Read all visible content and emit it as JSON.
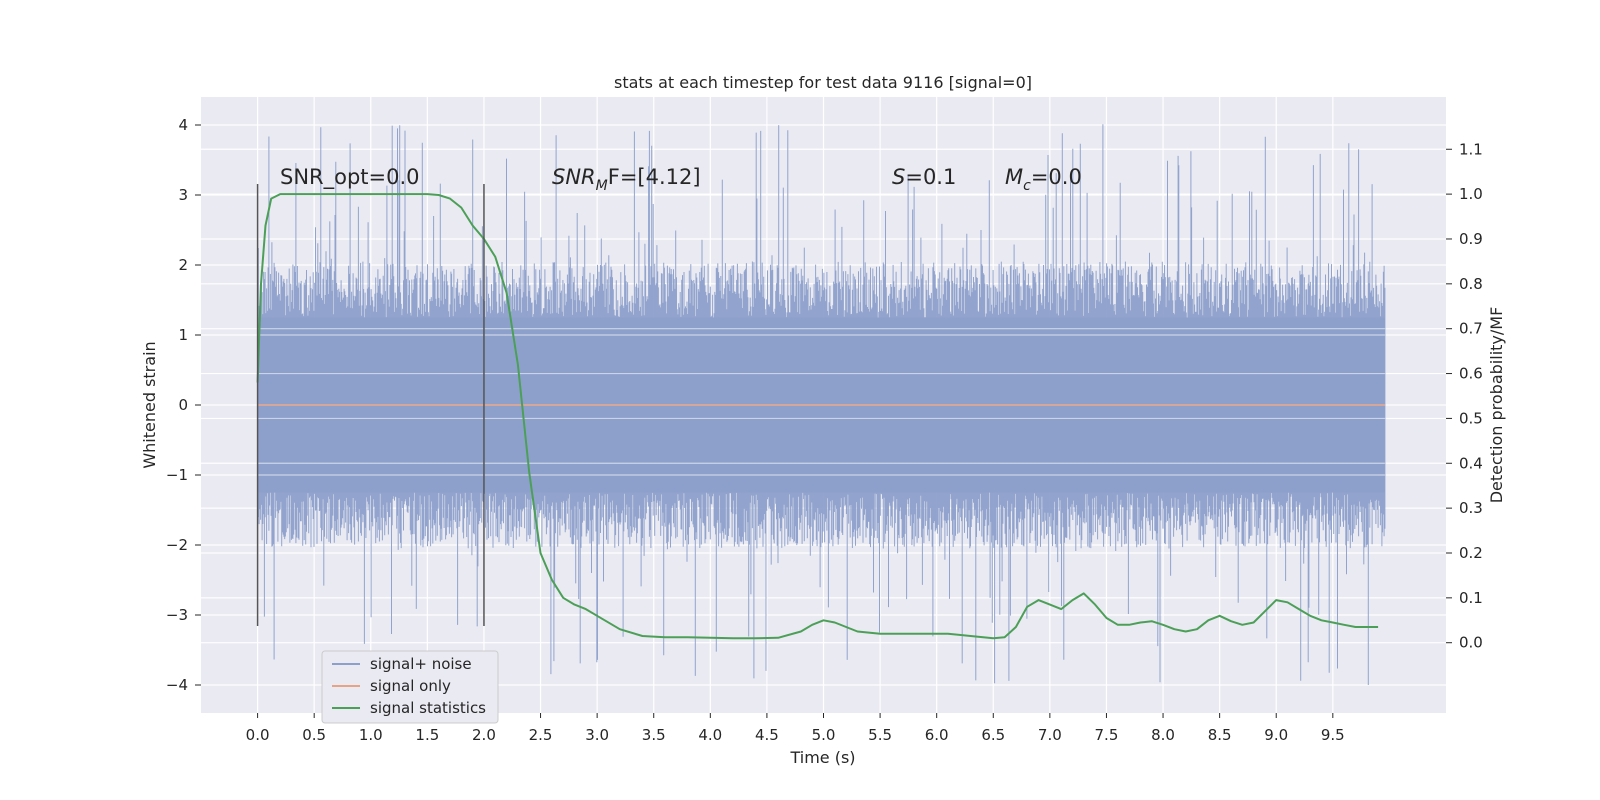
{
  "chart_data": {
    "type": "line",
    "title": "stats at each timestep for test data 9116 [signal=0]",
    "xlabel": "Time (s)",
    "ylabel": "Whitened strain",
    "y2label": "Detection probability/MF",
    "xlim": [
      -0.5,
      10.5
    ],
    "ylim": [
      -4.4,
      4.4
    ],
    "y2lim": [
      -0.1567,
      1.2165
    ],
    "x_ticks": [
      "0.0",
      "0.5",
      "1.0",
      "1.5",
      "2.0",
      "2.5",
      "3.0",
      "3.5",
      "4.0",
      "4.5",
      "5.0",
      "5.5",
      "6.0",
      "6.5",
      "7.0",
      "7.5",
      "8.0",
      "8.5",
      "9.0",
      "9.5"
    ],
    "y_ticks": [
      "4",
      "3",
      "2",
      "1",
      "0",
      "−1",
      "−2",
      "−3",
      "−4"
    ],
    "y2_ticks": [
      "1.1",
      "1.0",
      "0.9",
      "0.8",
      "0.7",
      "0.6",
      "0.5",
      "0.4",
      "0.3",
      "0.2",
      "0.1",
      "0.0"
    ],
    "grid": true,
    "legend_position": "lower-left",
    "colors": {
      "plot_bg": "#eaeaf2",
      "grid": "#ffffff",
      "noise": "#8da0cb",
      "signal": "#e8a387",
      "stats": "#4c9f57",
      "vline": "#555555"
    },
    "annotations": [
      {
        "text": "SNR_opt=0.0"
      },
      {
        "base": "SNR",
        "sub": "M",
        "tail": "F=[4.12]"
      },
      {
        "base": "S",
        "sub": "",
        "tail": "=0.1"
      },
      {
        "base": "M",
        "sub": "c",
        "tail": "=0.0"
      }
    ],
    "vertical_markers": [
      0.0,
      2.0
    ],
    "series": [
      {
        "name": "signal+ noise",
        "kind": "noise",
        "x_range": [
          0.0,
          9.96
        ],
        "envelope_core": 1.25,
        "peak_range": [
          -4.05,
          4.02
        ]
      },
      {
        "name": "signal only",
        "kind": "line",
        "x": [
          0.0,
          9.96
        ],
        "y": [
          0.0,
          0.0
        ]
      },
      {
        "name": "signal statistics",
        "kind": "line",
        "axis": "right",
        "x": [
          0.0,
          0.03,
          0.07,
          0.12,
          0.2,
          0.3,
          0.5,
          0.8,
          1.0,
          1.3,
          1.5,
          1.6,
          1.7,
          1.8,
          1.9,
          2.0,
          2.1,
          2.2,
          2.3,
          2.4,
          2.5,
          2.6,
          2.7,
          2.8,
          2.9,
          3.0,
          3.2,
          3.4,
          3.6,
          3.8,
          4.0,
          4.2,
          4.4,
          4.6,
          4.8,
          4.9,
          5.0,
          5.1,
          5.3,
          5.5,
          5.7,
          5.9,
          6.1,
          6.3,
          6.5,
          6.6,
          6.7,
          6.8,
          6.9,
          7.0,
          7.1,
          7.2,
          7.3,
          7.4,
          7.5,
          7.6,
          7.7,
          7.8,
          7.9,
          8.0,
          8.1,
          8.2,
          8.3,
          8.4,
          8.5,
          8.6,
          8.7,
          8.8,
          8.9,
          9.0,
          9.1,
          9.2,
          9.3,
          9.4,
          9.5,
          9.6,
          9.7,
          9.8,
          9.9
        ],
        "y": [
          0.58,
          0.8,
          0.93,
          0.99,
          1.0,
          1.0,
          1.0,
          1.0,
          1.0,
          1.0,
          1.0,
          0.998,
          0.99,
          0.97,
          0.93,
          0.9,
          0.86,
          0.78,
          0.62,
          0.38,
          0.2,
          0.14,
          0.1,
          0.085,
          0.075,
          0.06,
          0.03,
          0.015,
          0.012,
          0.012,
          0.011,
          0.01,
          0.01,
          0.011,
          0.025,
          0.04,
          0.05,
          0.045,
          0.025,
          0.02,
          0.02,
          0.02,
          0.02,
          0.015,
          0.01,
          0.012,
          0.035,
          0.08,
          0.095,
          0.085,
          0.075,
          0.095,
          0.11,
          0.085,
          0.055,
          0.04,
          0.04,
          0.045,
          0.048,
          0.04,
          0.03,
          0.025,
          0.03,
          0.05,
          0.06,
          0.048,
          0.04,
          0.045,
          0.07,
          0.095,
          0.09,
          0.075,
          0.06,
          0.05,
          0.045,
          0.04,
          0.035,
          0.035,
          0.035
        ]
      }
    ]
  }
}
